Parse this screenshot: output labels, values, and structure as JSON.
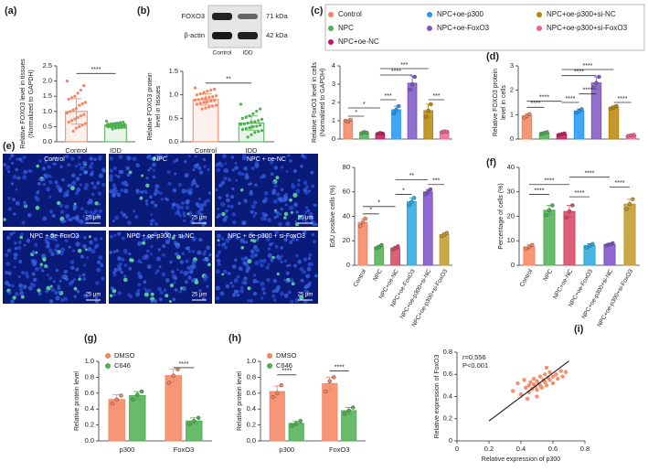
{
  "blot": {
    "panel": "(b)",
    "rows": [
      {
        "protein": "FOXO3",
        "size": "71 kDa"
      },
      {
        "protein": "β-actin",
        "size": "42 kDa"
      }
    ],
    "lanes": [
      "Control",
      "IDD"
    ]
  },
  "images": {
    "panel": "(e)",
    "labels": [
      "Control",
      "NPC",
      "NPC + oe-NC",
      "NPC + oe-FoxO3",
      "NPC + oe-p300 + si-NC",
      "NPC + oe-p300 + si-FoxO3"
    ],
    "scale_bar": "25 μm"
  },
  "chart_data": [
    {
      "type": "bar",
      "panel": "(a)",
      "bar_style": "outline",
      "ylabel": [
        "Relative FOXO3 level in tissues",
        "(Normalized to GAPDH)"
      ],
      "categories": [
        "Control",
        "IDD"
      ],
      "colors": [
        "#f4845f",
        "#4caf50"
      ],
      "values": [
        1.0,
        0.55
      ],
      "errors": [
        0.42,
        0.07
      ],
      "points": [
        [
          2.0,
          1.85,
          1.7,
          1.6,
          1.5,
          1.45,
          1.4,
          1.3,
          1.25,
          1.2,
          1.1,
          1.05,
          1.0,
          0.95,
          0.9,
          0.85,
          0.8,
          0.75,
          0.7,
          0.65,
          0.6,
          0.55,
          0.5,
          0.45,
          0.35
        ],
        [
          0.68,
          0.65,
          0.63,
          0.62,
          0.6,
          0.59,
          0.58,
          0.57,
          0.56,
          0.56,
          0.55,
          0.55,
          0.54,
          0.54,
          0.53,
          0.52,
          0.52,
          0.51,
          0.5,
          0.49,
          0.48,
          0.47,
          0.46,
          0.45,
          0.42
        ]
      ],
      "ylim": [
        0,
        2.5
      ],
      "yticks": [
        {
          "value": 0,
          "label": "0.0"
        },
        {
          "value": 0.5,
          "label": "0.5"
        },
        {
          "value": 1,
          "label": "1.0"
        },
        {
          "value": 1.5,
          "label": "1.5"
        },
        {
          "value": 2,
          "label": "2.0"
        },
        {
          "value": 2.5,
          "label": "2.5"
        }
      ],
      "significance": [
        "****"
      ]
    },
    {
      "type": "bar",
      "bar_style": "outline",
      "ylabel": [
        "Relative FOXO3 protein",
        "level in tissues"
      ],
      "categories": [
        "Control",
        "IDD"
      ],
      "colors": [
        "#f4845f",
        "#4caf50"
      ],
      "values": [
        0.9,
        0.4
      ],
      "errors": [
        0.12,
        0.15
      ],
      "points": [
        [
          1.15,
          1.12,
          1.1,
          1.08,
          1.05,
          1.02,
          1.0,
          0.98,
          0.96,
          0.95,
          0.93,
          0.92,
          0.9,
          0.89,
          0.88,
          0.87,
          0.85,
          0.84,
          0.82,
          0.8,
          0.78,
          0.76,
          0.74,
          0.72,
          0.7
        ],
        [
          0.8,
          0.7,
          0.65,
          0.6,
          0.55,
          0.52,
          0.5,
          0.48,
          0.45,
          0.43,
          0.42,
          0.4,
          0.38,
          0.37,
          0.35,
          0.33,
          0.32,
          0.3,
          0.28,
          0.26,
          0.24,
          0.22,
          0.2,
          0.15,
          0.1
        ]
      ],
      "ylim": [
        0,
        1.5
      ],
      "yticks": [
        {
          "value": 0,
          "label": "0.0"
        },
        {
          "value": 0.5,
          "label": "0.5"
        },
        {
          "value": 1,
          "label": "1.0"
        },
        {
          "value": 1.5,
          "label": "1.5"
        }
      ],
      "significance": [
        "**"
      ]
    },
    {
      "type": "bar",
      "panel": "(c)",
      "bar_style": "solid",
      "ylabel": [
        "Relative FoxO3 level in cells",
        "(Normalized to GAPDH)"
      ],
      "categories": [
        "Control",
        "NPC",
        "NPC+oe-NC",
        "NPC+oe-p300",
        "NPC+oe-FoxO3",
        "NPC+oe-p300+si-NC",
        "NPC+oe-p300+si-FoxO3"
      ],
      "colors": [
        "#f4845f",
        "#4caf50",
        "#c2185b",
        "#2196f3",
        "#7e57c2",
        "#b8860b",
        "#f06292"
      ],
      "values": [
        1.0,
        0.35,
        0.3,
        1.6,
        3.05,
        1.55,
        0.4
      ],
      "errors": [
        0.05,
        0.05,
        0.05,
        0.2,
        0.4,
        0.35,
        0.05
      ],
      "points": [
        [
          1.0,
          0.95,
          1.05
        ],
        [
          0.32,
          0.38,
          0.35
        ],
        [
          0.28,
          0.33,
          0.3
        ],
        [
          1.4,
          1.6,
          1.8
        ],
        [
          2.7,
          3.0,
          3.4
        ],
        [
          1.2,
          1.55,
          1.9
        ],
        [
          0.38,
          0.42,
          0.4
        ]
      ],
      "ylim": [
        0,
        4
      ],
      "yticks": [
        0,
        1,
        2,
        3,
        4
      ],
      "significance": [
        "*",
        "*",
        "***",
        "****",
        "***",
        "***"
      ]
    },
    {
      "type": "bar",
      "panel": "(d)",
      "bar_style": "solid",
      "ylabel": [
        "Relative FOXO3 protein",
        "level in cells"
      ],
      "colors": [
        "#f4845f",
        "#4caf50",
        "#c2185b",
        "#2196f3",
        "#7e57c2",
        "#b8860b",
        "#f06292"
      ],
      "values": [
        0.95,
        0.25,
        0.2,
        1.15,
        2.3,
        1.3,
        0.15
      ],
      "errors": [
        0.08,
        0.03,
        0.03,
        0.08,
        0.25,
        0.05,
        0.03
      ],
      "points": [
        [
          0.88,
          0.95,
          1.02
        ],
        [
          0.22,
          0.25,
          0.28
        ],
        [
          0.17,
          0.2,
          0.23
        ],
        [
          1.08,
          1.15,
          1.22
        ],
        [
          2.1,
          2.3,
          2.55
        ],
        [
          1.25,
          1.3,
          1.35
        ],
        [
          0.13,
          0.15,
          0.17
        ]
      ],
      "ylim": [
        0,
        3
      ],
      "yticks": [
        0,
        1,
        2,
        3
      ],
      "significance": [
        "****",
        "****",
        "****",
        "****",
        "****",
        "****",
        "****"
      ]
    },
    {
      "type": "bar",
      "bar_style": "solid",
      "ylabel": [
        "EdU positive cells (%)"
      ],
      "categories": [
        "Control",
        "NPC",
        "NPC+oe-NC",
        "NPC+oe-FoxO3",
        "NPC+oe-p300+si-NC",
        "NPC+oe-p300+si-FoxO3"
      ],
      "colors": [
        "#f4845f",
        "#4caf50",
        "#d6455f",
        "#29a8e0",
        "#7b4fc9",
        "#c09a2a"
      ],
      "values": [
        35,
        15,
        14,
        52,
        60,
        25
      ],
      "errors": [
        3,
        1.5,
        1.5,
        3,
        2,
        1.5
      ],
      "points": [
        [
          32,
          35,
          38
        ],
        [
          14,
          15,
          16.5
        ],
        [
          13,
          14,
          15.5
        ],
        [
          49,
          52,
          55
        ],
        [
          58,
          60,
          62
        ],
        [
          24,
          25,
          26.5
        ]
      ],
      "ylim": [
        0,
        80
      ],
      "yticks": [
        0,
        20,
        40,
        60,
        80
      ],
      "significance": [
        "*",
        "*",
        "*",
        "**",
        "***"
      ]
    },
    {
      "type": "bar",
      "panel": "(f)",
      "bar_style": "solid",
      "ylabel": [
        "Percentage of cells (%)"
      ],
      "categories": [
        "Control",
        "NPC",
        "NPC+oe-NC",
        "NPC+oe-FoxO3",
        "NPC+oe-p300+si-NC",
        "NPC+oe-p300+si-FoxO3"
      ],
      "colors": [
        "#f4845f",
        "#4caf50",
        "#d6455f",
        "#29a8e0",
        "#7b4fc9",
        "#c09a2a"
      ],
      "values": [
        7.5,
        22.5,
        22,
        8,
        8.5,
        25
      ],
      "errors": [
        1,
        2,
        2.5,
        0.8,
        0.5,
        2
      ],
      "points": [
        [
          6.8,
          7.5,
          8.3
        ],
        [
          20.5,
          22.5,
          24.5
        ],
        [
          19.5,
          22,
          24.5
        ],
        [
          7.3,
          8,
          8.7
        ],
        [
          8.1,
          8.5,
          9
        ],
        [
          23,
          25,
          27
        ]
      ],
      "ylim": [
        0,
        40
      ],
      "yticks": [
        0,
        10,
        20,
        30,
        40
      ],
      "significance": [
        "****",
        "****",
        "****",
        "****",
        "****"
      ]
    },
    {
      "type": "bar",
      "panel": "(g)",
      "bar_style": "solid",
      "ylabel": [
        "Relative protein level"
      ],
      "categories": [
        "p300",
        "FoxO3"
      ],
      "series": [
        {
          "name": "DMSO",
          "color": "#f4845f",
          "values": [
            0.52,
            0.82
          ],
          "errors": [
            0.06,
            0.08
          ],
          "points": [
            [
              0.47,
              0.52,
              0.57
            ],
            [
              0.73,
              0.82,
              0.9
            ]
          ]
        },
        {
          "name": "C646",
          "color": "#4caf50",
          "values": [
            0.57,
            0.25
          ],
          "errors": [
            0.05,
            0.04
          ],
          "points": [
            [
              0.52,
              0.58,
              0.62
            ],
            [
              0.21,
              0.25,
              0.29
            ]
          ]
        }
      ],
      "ylim": [
        0,
        1
      ],
      "yticks": [
        {
          "value": 0,
          "label": "0.0"
        },
        {
          "value": 0.2,
          "label": "0.2"
        },
        {
          "value": 0.4,
          "label": "0.4"
        },
        {
          "value": 0.6,
          "label": "0.6"
        },
        {
          "value": 0.8,
          "label": "0.8"
        },
        {
          "value": 1,
          "label": "1.0"
        }
      ],
      "significance": [
        "****"
      ]
    },
    {
      "type": "bar",
      "panel": "(h)",
      "bar_style": "solid",
      "ylabel": [
        "Relative protein level"
      ],
      "categories": [
        "p300",
        "FoxO3"
      ],
      "series": [
        {
          "name": "DMSO",
          "color": "#f4845f",
          "values": [
            0.62,
            0.72
          ],
          "errors": [
            0.07,
            0.08
          ],
          "points": [
            [
              0.55,
              0.6,
              0.7
            ],
            [
              0.62,
              0.75,
              0.8
            ]
          ]
        },
        {
          "name": "C646",
          "color": "#4caf50",
          "values": [
            0.22,
            0.38
          ],
          "errors": [
            0.03,
            0.04
          ],
          "points": [
            [
              0.19,
              0.22,
              0.25
            ],
            [
              0.34,
              0.38,
              0.42
            ]
          ]
        }
      ],
      "ylim": [
        0,
        1
      ],
      "yticks": [
        {
          "value": 0,
          "label": "0.0"
        },
        {
          "value": 0.2,
          "label": "0.2"
        },
        {
          "value": 0.4,
          "label": "0.4"
        },
        {
          "value": 0.6,
          "label": "0.6"
        },
        {
          "value": 0.8,
          "label": "0.8"
        },
        {
          "value": 1,
          "label": "1.0"
        }
      ],
      "significance": [
        "****",
        "****"
      ]
    },
    {
      "type": "scatter",
      "panel": "(i)",
      "xlabel": "Relative expression of p300",
      "ylabel": [
        "Relative expression of FoxO3"
      ],
      "color": "#f4845f",
      "annotations": [
        "r=0.556",
        "P<0.001"
      ],
      "x": [
        0.35,
        0.38,
        0.4,
        0.42,
        0.43,
        0.45,
        0.45,
        0.46,
        0.47,
        0.48,
        0.48,
        0.49,
        0.5,
        0.5,
        0.51,
        0.52,
        0.52,
        0.53,
        0.54,
        0.55,
        0.55,
        0.56,
        0.57,
        0.58,
        0.58,
        0.6,
        0.6,
        0.62,
        0.63,
        0.65,
        0.66,
        0.68,
        0.44,
        0.5,
        0.56
      ],
      "y": [
        0.45,
        0.52,
        0.42,
        0.55,
        0.48,
        0.5,
        0.44,
        0.53,
        0.47,
        0.51,
        0.56,
        0.49,
        0.54,
        0.46,
        0.52,
        0.58,
        0.5,
        0.48,
        0.55,
        0.53,
        0.6,
        0.5,
        0.57,
        0.55,
        0.62,
        0.58,
        0.52,
        0.6,
        0.56,
        0.63,
        0.58,
        0.62,
        0.38,
        0.4,
        0.66
      ],
      "fit_line": {
        "x": [
          0.2,
          0.7
        ],
        "y": [
          0.18,
          0.72
        ]
      },
      "xlim": [
        0,
        0.8
      ],
      "xticks": [
        0,
        0.2,
        0.4,
        0.6,
        0.8
      ],
      "ylim": [
        0,
        0.8
      ],
      "yticks": [
        0,
        0.2,
        0.4,
        0.6,
        0.8
      ]
    }
  ]
}
